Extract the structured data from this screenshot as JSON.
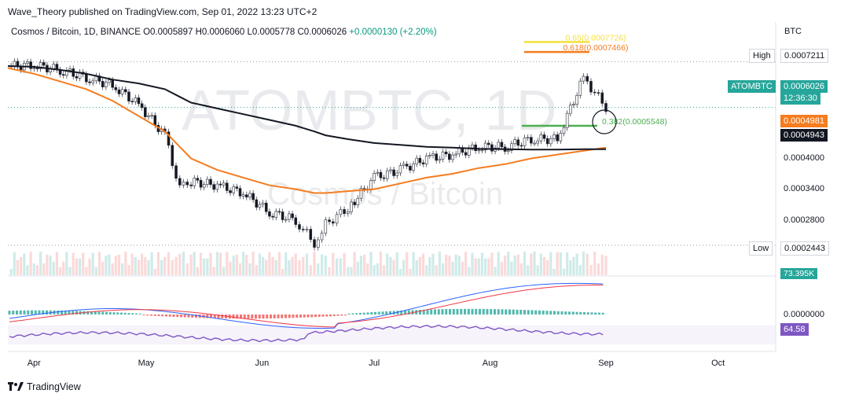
{
  "header": {
    "published": "Wave_Theory published on TradingView.com, Sep 01, 2022 13:23 UTC+2",
    "symbol_line": "Cosmos / Bitcoin, 1D, BINANCE",
    "open": "O0.0005897",
    "high": "H0.0006060",
    "low": "L0.0005778",
    "close": "C0.0006026",
    "change": "+0.0000130 (+2.20%)"
  },
  "footer": {
    "brand": "TradingView"
  },
  "watermark": {
    "line1": "ATOMBTC, 1D",
    "line2": "Cosmos / Bitcoin"
  },
  "price_axis": {
    "currency": "BTC",
    "ticks": [
      "0.0004000",
      "0.0003400",
      "0.0002800",
      "0.0000000"
    ]
  },
  "labels": {
    "high_label": "High",
    "high_value": "0.0007211",
    "low_label": "Low",
    "low_value": "0.0002443",
    "symbol_tag": "ATOMBTC",
    "last_price": "0.0006026",
    "countdown": "12:36:30",
    "ma_orange": "0.0004981",
    "ma_black": "0.0004943",
    "volume": "73.395K",
    "rsi": "64.58"
  },
  "fib_levels": [
    {
      "label": "0.65(0.0007726)",
      "color": "#f5e13b",
      "value": 0.0007726
    },
    {
      "label": "0.618(0.0007466)",
      "color": "#f57c1f",
      "value": 0.0007466
    },
    {
      "label": "0.382(0.0005548)",
      "color": "#4caf50",
      "value": 0.0005548
    }
  ],
  "time_axis": [
    "Apr",
    "May",
    "Jun",
    "Jul",
    "Aug",
    "Sep",
    "Oct"
  ],
  "chart_data": {
    "type": "line",
    "title": "Cosmos / Bitcoin, 1D, BINANCE",
    "x": [
      "2022-03-25",
      "2022-04-01",
      "2022-04-08",
      "2022-04-15",
      "2022-04-22",
      "2022-04-29",
      "2022-05-06",
      "2022-05-10",
      "2022-05-13",
      "2022-05-20",
      "2022-05-27",
      "2022-06-03",
      "2022-06-10",
      "2022-06-15",
      "2022-06-18",
      "2022-06-24",
      "2022-07-01",
      "2022-07-08",
      "2022-07-15",
      "2022-07-22",
      "2022-07-29",
      "2022-08-05",
      "2022-08-12",
      "2022-08-19",
      "2022-08-26",
      "2022-09-01"
    ],
    "series": [
      {
        "values": [
          0.00071,
          0.000712,
          0.0007,
          0.00068,
          0.00066,
          0.00061,
          0.00053,
          0.00039,
          0.00041,
          0.0004,
          0.00038,
          0.00033,
          0.00031,
          0.00025,
          0.0003,
          0.00034,
          0.00042,
          0.00044,
          0.00047,
          0.00048,
          0.0005,
          0.0005,
          0.00052,
          0.00052,
          0.00068,
          0.000603
        ]
      },
      {
        "values": [
          0.000705,
          0.00069,
          0.00067,
          0.00065,
          0.00062,
          0.00058,
          0.00054,
          0.0005,
          0.00047,
          0.00044,
          0.00042,
          0.0004,
          0.00039,
          0.00038,
          0.00038,
          0.000385,
          0.00039,
          0.000405,
          0.00042,
          0.00043,
          0.000445,
          0.000455,
          0.00047,
          0.00048,
          0.00049,
          0.000498
        ]
      },
      {
        "values": [
          0.00071,
          0.000708,
          0.0007,
          0.00069,
          0.000675,
          0.000665,
          0.00065,
          0.00063,
          0.000615,
          0.0006,
          0.000585,
          0.00057,
          0.000555,
          0.00054,
          0.00053,
          0.00052,
          0.00051,
          0.000505,
          0.0005,
          0.000498,
          0.000495,
          0.000494,
          0.000493,
          0.000493,
          0.000494,
          0.000494
        ]
      }
    ],
    "ylim": [
      0.00024,
      0.0008
    ]
  }
}
